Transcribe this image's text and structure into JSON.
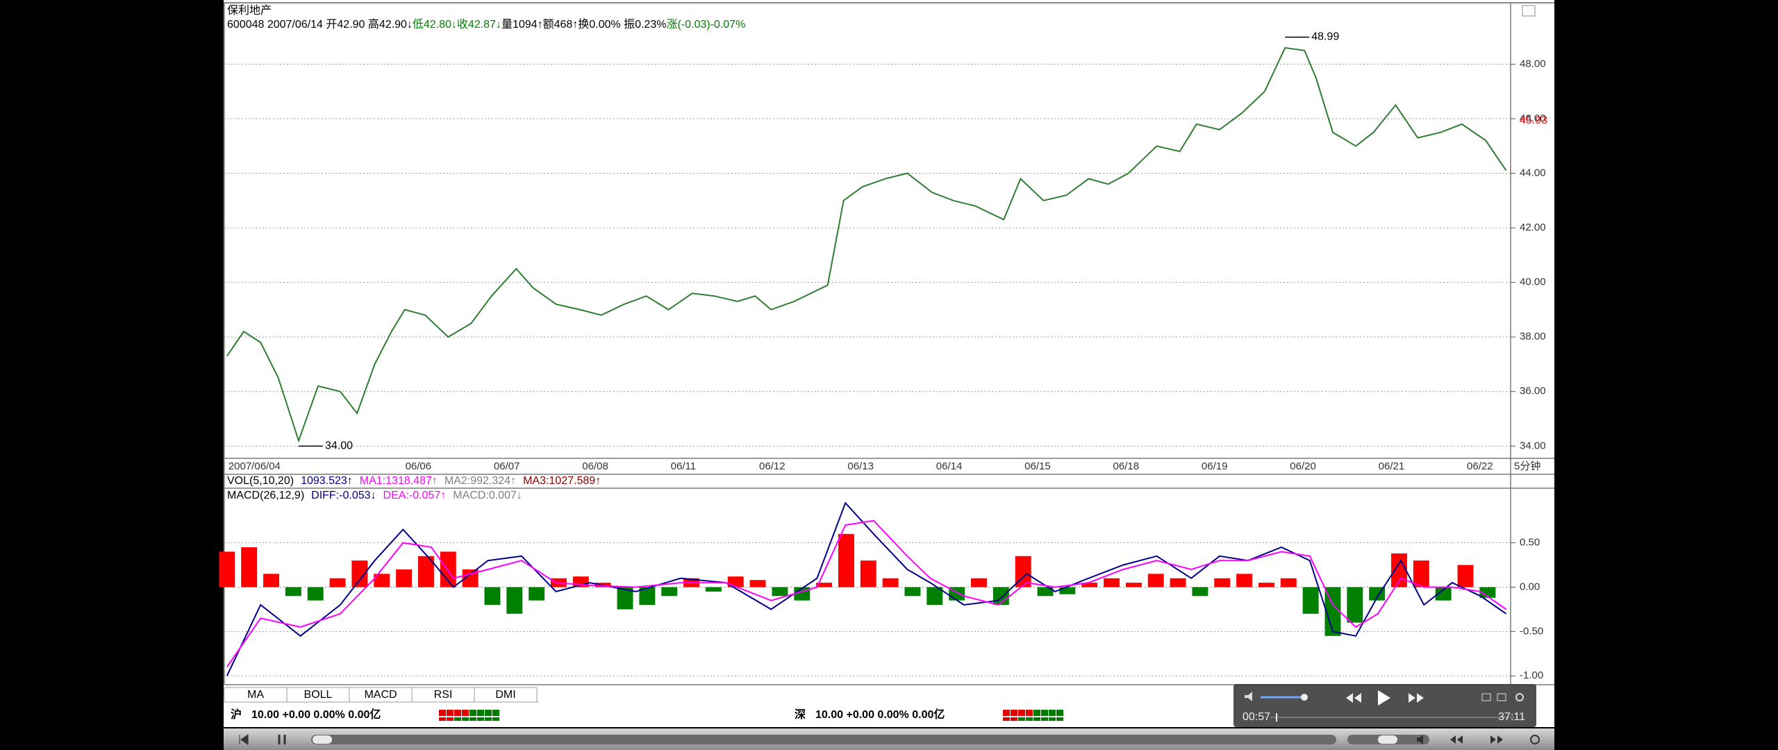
{
  "window": {
    "title": "保利地产"
  },
  "quote": [
    {
      "text": "600048 2007/06/14 开42.90 高42.90↓",
      "color": "#000000"
    },
    {
      "text": "低42.80↓收42.87↓",
      "color": "#008000"
    },
    {
      "text": "量1094↑额468↑换0.00% 振0.23%",
      "color": "#000000"
    },
    {
      "text": "涨(-0.03)-0.07%",
      "color": "#008000"
    }
  ],
  "chart_data": [
    {
      "type": "line",
      "period": "5分钟",
      "categories": [
        "2007/06/04",
        null,
        "06/06",
        "06/07",
        "06/08",
        "06/11",
        "06/12",
        "06/13",
        "06/14",
        "06/15",
        "06/18",
        "06/19",
        "06/20",
        "06/21",
        "06/22"
      ],
      "x": [
        0,
        0.19,
        0.38,
        0.58,
        0.81,
        1.03,
        1.28,
        1.47,
        1.67,
        1.86,
        2.01,
        2.24,
        2.5,
        2.76,
        2.99,
        3.27,
        3.46,
        3.72,
        3.99,
        4.23,
        4.49,
        4.74,
        4.99,
        5.26,
        5.51,
        5.77,
        5.97,
        6.15,
        6.41,
        6.6,
        6.79,
        6.97,
        7.18,
        7.44,
        7.69,
        7.97,
        8.21,
        8.46,
        8.78,
        8.97,
        9.23,
        9.49,
        9.74,
        9.96,
        10.19,
        10.51,
        10.77,
        10.96,
        11.22,
        11.47,
        11.73,
        11.96,
        12.18,
        12.31,
        12.5,
        12.76,
        12.96,
        13.21,
        13.46,
        13.72,
        13.96,
        14.23,
        14.46
      ],
      "series": [
        {
          "color": "#2e7d32",
          "values": [
            37.3,
            38.2,
            37.8,
            36.5,
            34.2,
            36.2,
            36.0,
            35.2,
            37.0,
            38.2,
            39.0,
            38.8,
            38.0,
            38.5,
            39.5,
            40.5,
            39.8,
            39.2,
            39.0,
            38.8,
            39.2,
            39.5,
            39.0,
            39.6,
            39.5,
            39.3,
            39.5,
            39.0,
            39.3,
            39.6,
            39.9,
            43.0,
            43.5,
            43.8,
            44.0,
            43.3,
            43.0,
            42.8,
            42.3,
            43.8,
            43.0,
            43.2,
            43.8,
            43.6,
            44.0,
            45.0,
            44.8,
            45.8,
            45.6,
            46.2,
            47.0,
            48.6,
            48.5,
            47.5,
            45.5,
            45.0,
            45.5,
            46.5,
            45.3,
            45.5,
            45.8,
            45.2,
            44.1
          ]
        }
      ],
      "xlim": [
        -0.03,
        14.51
      ],
      "ylim": [
        33.55,
        50.2
      ],
      "yticks": [
        {
          "value": 34,
          "label": "34.00"
        },
        {
          "value": 36,
          "label": "36.00"
        },
        {
          "value": 38,
          "label": "38.00"
        },
        {
          "value": 40,
          "label": "40.00"
        },
        {
          "value": 42,
          "label": "42.00"
        },
        {
          "value": 44,
          "label": "44.00"
        },
        {
          "value": 46,
          "label": "46.00"
        },
        {
          "value": 48,
          "label": "48.00"
        }
      ],
      "grid": true,
      "annotations": [
        {
          "x": 11.96,
          "y": 48.99,
          "label": "48.99"
        },
        {
          "x": 0.81,
          "y": 34,
          "label": "34.00"
        }
      ],
      "last_price": {
        "value": 45.93,
        "color": "#ff0000"
      }
    },
    {
      "type": "macd",
      "title": "MACD(26,12,9)",
      "series": [
        {
          "name": "DIFF:-0.053↓",
          "color": "#00008b",
          "x": [
            0,
            0.38,
            0.83,
            1.28,
            1.67,
            1.99,
            2.31,
            2.56,
            2.95,
            3.33,
            3.72,
            4.1,
            4.62,
            5.13,
            5.64,
            6.15,
            6.67,
            6.99,
            7.31,
            7.69,
            7.95,
            8.33,
            8.72,
            9.04,
            9.36,
            9.74,
            10.13,
            10.51,
            10.9,
            11.22,
            11.54,
            11.92,
            12.24,
            12.5,
            12.76,
            13.01,
            13.27,
            13.53,
            13.85,
            14.17,
            14.46
          ],
          "values": [
            -1.0,
            -0.2,
            -0.55,
            -0.2,
            0.3,
            0.65,
            0.3,
            0.0,
            0.3,
            0.35,
            -0.05,
            0.05,
            -0.05,
            0.1,
            0.05,
            -0.25,
            0.1,
            0.95,
            0.6,
            0.2,
            0.05,
            -0.2,
            -0.15,
            0.15,
            -0.05,
            0.1,
            0.25,
            0.35,
            0.1,
            0.35,
            0.3,
            0.45,
            0.3,
            -0.5,
            -0.55,
            -0.1,
            0.3,
            -0.2,
            0.05,
            -0.1,
            -0.3
          ]
        },
        {
          "name": "DEA:-0.057↑",
          "color": "#ff00ff",
          "x": [
            0,
            0.38,
            0.83,
            1.28,
            1.67,
            1.99,
            2.31,
            2.56,
            2.95,
            3.33,
            3.72,
            4.1,
            4.62,
            5.13,
            5.64,
            6.15,
            6.67,
            6.99,
            7.31,
            7.69,
            7.95,
            8.33,
            8.72,
            9.04,
            9.36,
            9.74,
            10.13,
            10.51,
            10.9,
            11.22,
            11.54,
            11.92,
            12.24,
            12.5,
            12.76,
            13.01,
            13.27,
            13.53,
            13.85,
            14.17,
            14.46
          ],
          "values": [
            -0.9,
            -0.35,
            -0.45,
            -0.3,
            0.1,
            0.5,
            0.45,
            0.1,
            0.2,
            0.3,
            0.05,
            0.02,
            0.0,
            0.05,
            0.05,
            -0.15,
            0.0,
            0.7,
            0.75,
            0.35,
            0.1,
            -0.1,
            -0.2,
            0.05,
            0.0,
            0.05,
            0.2,
            0.3,
            0.2,
            0.3,
            0.3,
            0.4,
            0.35,
            -0.2,
            -0.45,
            -0.3,
            0.1,
            0.0,
            0.0,
            -0.05,
            -0.25
          ]
        },
        {
          "name": "MACD:0.007↓",
          "color": "#808080",
          "style": "bar",
          "up_color": "#ff0000",
          "down_color": "#008000",
          "x": [
            0,
            0.25,
            0.5,
            0.75,
            1,
            1.25,
            1.5,
            1.75,
            2,
            2.25,
            2.5,
            2.75,
            3,
            3.25,
            3.5,
            3.75,
            4,
            4.25,
            4.5,
            4.75,
            5,
            5.25,
            5.5,
            5.75,
            6,
            6.25,
            6.5,
            6.75,
            7,
            7.25,
            7.5,
            7.75,
            8,
            8.25,
            8.5,
            8.75,
            9,
            9.25,
            9.5,
            9.75,
            10,
            10.25,
            10.5,
            10.75,
            11,
            11.25,
            11.5,
            11.75,
            12,
            12.25,
            12.5,
            12.75,
            13,
            13.25,
            13.5,
            13.75,
            14,
            14.25
          ],
          "values": [
            0.4,
            0.45,
            0.15,
            -0.1,
            -0.15,
            0.1,
            0.3,
            0.15,
            0.2,
            0.35,
            0.4,
            0.2,
            -0.2,
            -0.3,
            -0.15,
            0.1,
            0.12,
            0.05,
            -0.25,
            -0.2,
            -0.1,
            0.1,
            -0.05,
            0.12,
            0.08,
            -0.1,
            -0.15,
            0.05,
            0.6,
            0.3,
            0.1,
            -0.1,
            -0.2,
            -0.15,
            0.1,
            -0.2,
            0.35,
            -0.1,
            -0.08,
            0.05,
            0.1,
            0.05,
            0.15,
            0.1,
            -0.1,
            0.1,
            0.15,
            0.05,
            0.1,
            -0.3,
            -0.55,
            -0.4,
            -0.15,
            0.38,
            0.3,
            -0.15,
            0.25,
            -0.12
          ]
        }
      ],
      "xlim": [
        -0.03,
        14.51
      ],
      "ylim": [
        -1.1,
        1.1
      ],
      "yticks": [
        {
          "value": 0.5,
          "label": "0.50"
        },
        {
          "value": 0,
          "label": "0.00"
        },
        {
          "value": -0.5,
          "label": "-0.50"
        },
        {
          "value": -1,
          "label": "-1.00"
        }
      ],
      "grid": true
    }
  ],
  "volume_legend": [
    {
      "text": "VOL(5,10,20)",
      "color": "#000000"
    },
    {
      "text": "1093.523↑",
      "color": "#00008b"
    },
    {
      "text": "MA1:1318.487↑",
      "color": "#ff00ff"
    },
    {
      "text": "MA2:992.324↑",
      "color": "#808080"
    },
    {
      "text": "MA3:1027.589↑",
      "color": "#8b0000"
    }
  ],
  "tabs": [
    "MA",
    "BOLL",
    "MACD",
    "RSI",
    "DMI"
  ],
  "status": [
    {
      "market": "沪",
      "text": "10.00 +0.00 0.00% 0.00亿"
    },
    {
      "market": "深",
      "text": "10.00 +0.00 0.00% 0.00亿"
    }
  ],
  "player": {
    "elapsed": "00:57",
    "total": "37:11"
  }
}
